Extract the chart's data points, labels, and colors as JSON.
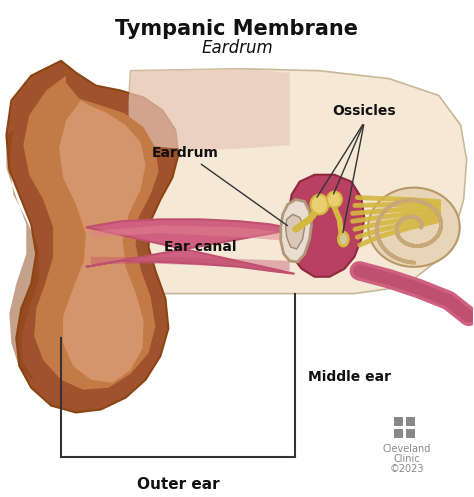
{
  "title": "Tympanic Membrane",
  "subtitle": "Eardrum",
  "background_color": "#ffffff",
  "title_fontsize": 15,
  "subtitle_fontsize": 12,
  "labels": {
    "eardrum": "Eardrum",
    "ear_canal": "Ear canal",
    "ossicles": "Ossicles",
    "middle_ear": "Middle ear",
    "outer_ear": "Outer ear"
  },
  "colors": {
    "ear_dark": "#8B4513",
    "ear_mid": "#A0522D",
    "ear_light": "#C47A45",
    "ear_highlight": "#D4956A",
    "canal_dark": "#C05070",
    "canal_mid": "#D06080",
    "canal_light": "#E08090",
    "inner_bg": "#F5E8D5",
    "inner_bg2": "#EDD8C0",
    "eardrum_membrane": "#E8DDD0",
    "eardrum_edge": "#C0A890",
    "ossicle_yellow": "#D4B840",
    "ossicle_light": "#E8D070",
    "cochlea_fill": "#E8D5B8",
    "cochlea_line": "#C8A878",
    "nerve_pink": "#C05070",
    "nerve_outer": "#D07090",
    "bracket_color": "#333333",
    "text_color": "#111111",
    "cleveland_color": "#888888",
    "stipple_color": "#D4A088"
  },
  "cleveland_text": [
    "Cleveland",
    "Clinic",
    "©2023"
  ],
  "figsize": [
    4.74,
    4.97
  ],
  "dpi": 100
}
